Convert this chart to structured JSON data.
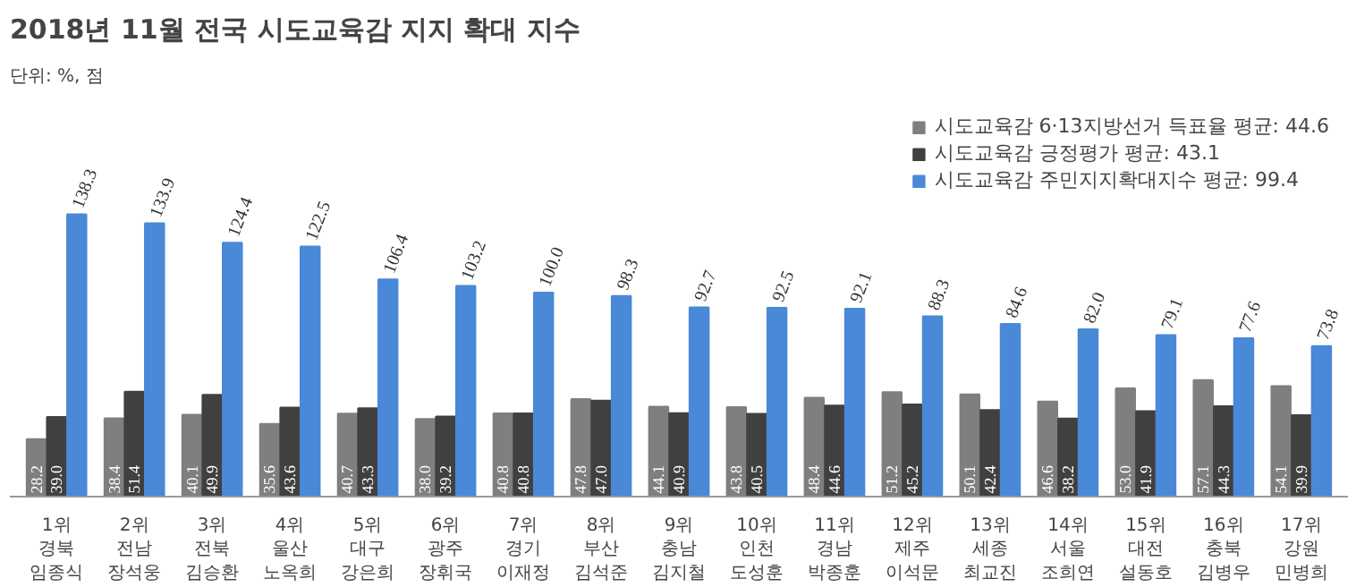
{
  "chart_data": {
    "type": "bar",
    "title": "2018년 11월 전국 시도교육감 지지 확대 지수",
    "subtitle": "단위: %, 점",
    "categories": [
      "1위\n경북\n임종식",
      "2위\n전남\n장석웅",
      "3위\n전북\n김승환",
      "4위\n울산\n노옥희",
      "5위\n대구\n강은희",
      "6위\n광주\n장휘국",
      "7위\n경기\n이재정",
      "8위\n부산\n김석준",
      "9위\n충남\n김지철",
      "10위\n인천\n도성훈",
      "11위\n경남\n박종훈",
      "12위\n제주\n이석문",
      "13위\n세종\n최교진",
      "14위\n서울\n조희연",
      "15위\n대전\n설동호",
      "16위\n충북\n김병우",
      "17위\n강원\n민병희"
    ],
    "series": [
      {
        "name": "시도교육감 6·13지방선거 득표율 평균: 44.6",
        "color": "#7f7f7f",
        "values": [
          28.2,
          38.4,
          40.1,
          35.6,
          40.7,
          38,
          40.8,
          47.8,
          44.1,
          43.8,
          48.4,
          51.2,
          50.1,
          46.6,
          53,
          57.1,
          54.1
        ],
        "value_labels": [
          "28.2",
          "38.4",
          "40.1",
          "35.6",
          "40.7",
          "38.0",
          "40.8",
          "47.8",
          "44.1",
          "43.8",
          "48.4",
          "51.2",
          "50.1",
          "46.6",
          "53.0",
          "57.1",
          "54.1"
        ]
      },
      {
        "name": "시도교육감 긍정평가 평균: 43.1",
        "color": "#404040",
        "values": [
          39,
          51.4,
          49.9,
          43.6,
          43.3,
          39.2,
          40.8,
          47,
          40.9,
          40.5,
          44.6,
          45.2,
          42.4,
          38.2,
          41.9,
          44.3,
          39.9
        ],
        "value_labels": [
          "39.0",
          "51.4",
          "49.9",
          "43.6",
          "43.3",
          "39.2",
          "40.8",
          "47.0",
          "40.9",
          "40.5",
          "44.6",
          "45.2",
          "42.4",
          "38.2",
          "41.9",
          "44.3",
          "39.9"
        ]
      },
      {
        "name": "시도교육감 주민지지확대지수 평균: 99.4",
        "color": "#4a88d8",
        "values": [
          138.3,
          133.9,
          124.4,
          122.5,
          106.4,
          103.2,
          100,
          98.3,
          92.7,
          92.5,
          92.1,
          88.3,
          84.6,
          82,
          79.1,
          77.6,
          73.8
        ],
        "value_labels": [
          "138.3",
          "133.9",
          "124.4",
          "122.5",
          "106.4",
          "103.2",
          "100.0",
          "98.3",
          "92.7",
          "92.5",
          "92.1",
          "88.3",
          "84.6",
          "82.0",
          "79.1",
          "77.6",
          "73.8"
        ]
      }
    ],
    "legend": "top right"
  }
}
